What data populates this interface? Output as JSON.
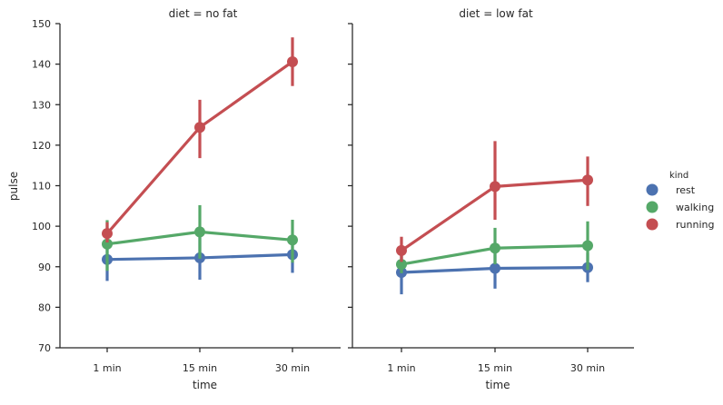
{
  "chart_data": {
    "type": "line",
    "ylabel": "pulse",
    "xlabel": "time",
    "categories": [
      "1 min",
      "15 min",
      "30 min"
    ],
    "ylim": [
      70,
      150
    ],
    "yticks": [
      70,
      80,
      90,
      100,
      110,
      120,
      130,
      140,
      150
    ],
    "grid": false,
    "legend": {
      "title": "kind",
      "placement": "right",
      "entries": [
        "rest",
        "walking",
        "running"
      ]
    },
    "colors": {
      "rest": "#4c72b0",
      "walking": "#55a868",
      "running": "#c44e52"
    },
    "panels": [
      {
        "title": "diet = no fat",
        "series": [
          {
            "name": "rest",
            "values": [
              91.8,
              92.2,
              93.0
            ],
            "ci_low": [
              86.5,
              86.8,
              88.5
            ],
            "ci_high": [
              96.8,
              97.5,
              97.2
            ]
          },
          {
            "name": "walking",
            "values": [
              95.6,
              98.6,
              96.6
            ],
            "ci_low": [
              89.0,
              92.0,
              91.0
            ],
            "ci_high": [
              101.5,
              105.2,
              101.6
            ]
          },
          {
            "name": "running",
            "values": [
              98.2,
              124.4,
              140.6
            ],
            "ci_low": [
              96.0,
              116.8,
              134.6
            ],
            "ci_high": [
              101.0,
              131.2,
              146.6
            ]
          }
        ]
      },
      {
        "title": "diet = low fat",
        "series": [
          {
            "name": "rest",
            "values": [
              88.6,
              89.6,
              89.8
            ],
            "ci_low": [
              83.2,
              84.6,
              86.2
            ],
            "ci_high": [
              92.8,
              95.0,
              93.4
            ]
          },
          {
            "name": "walking",
            "values": [
              90.6,
              94.6,
              95.2
            ],
            "ci_low": [
              88.4,
              90.6,
              89.2
            ],
            "ci_high": [
              92.8,
              99.6,
              101.2
            ]
          },
          {
            "name": "running",
            "values": [
              94.0,
              109.8,
              111.4
            ],
            "ci_low": [
              91.2,
              101.6,
              105.0
            ],
            "ci_high": [
              97.4,
              121.0,
              117.2
            ]
          }
        ]
      }
    ]
  }
}
